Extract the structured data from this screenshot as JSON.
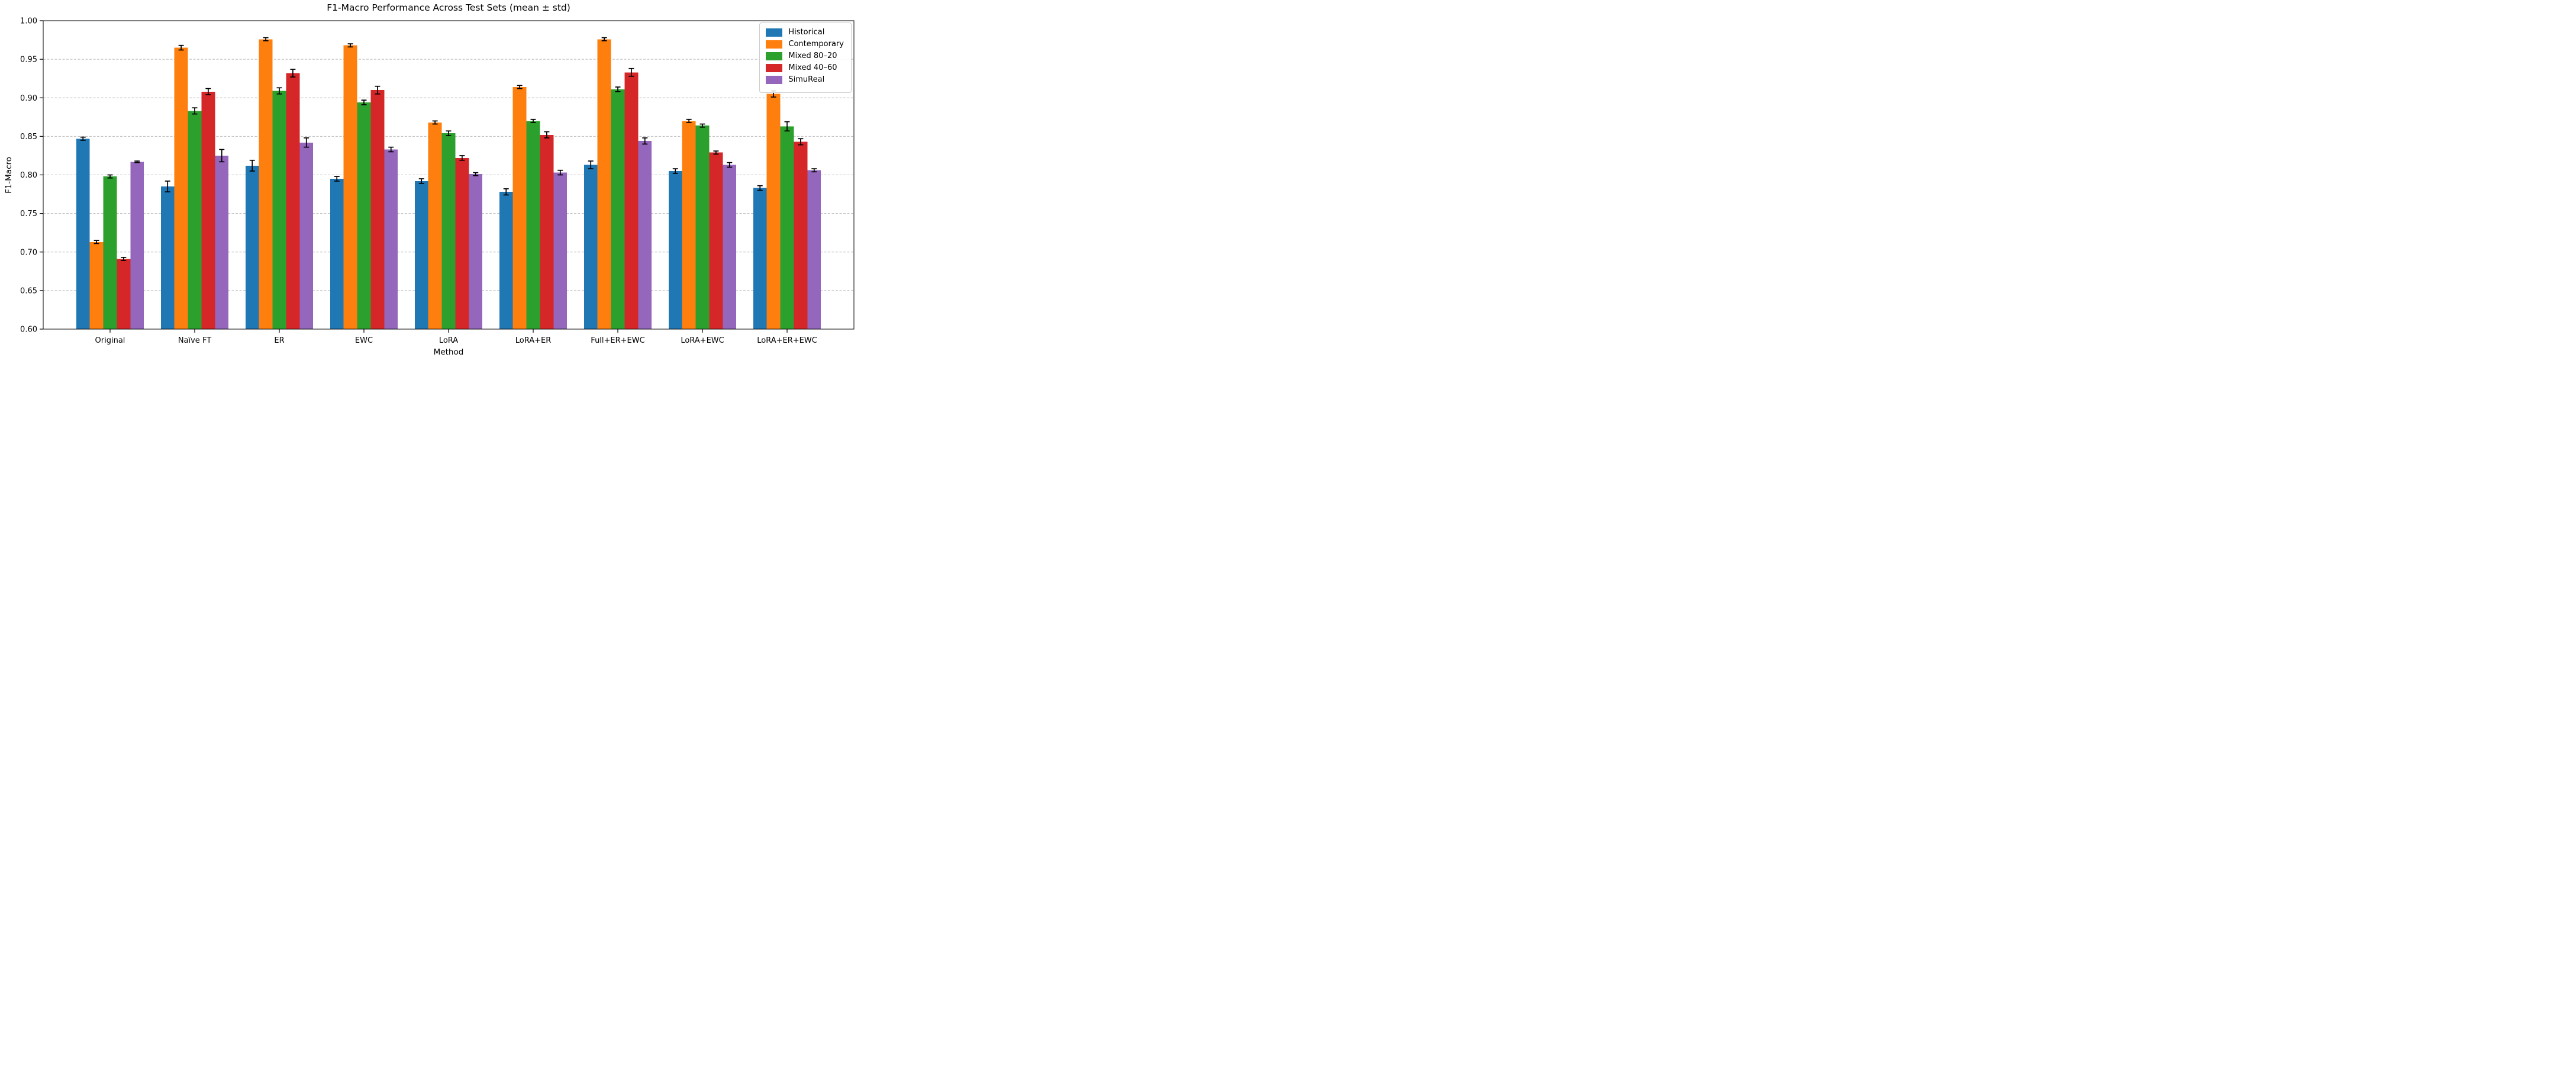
{
  "title": "F1-Macro Performance Across Test Sets (mean ± std)",
  "chart_data": {
    "type": "bar",
    "title": "F1-Macro Performance Across Test Sets (mean ± std)",
    "xlabel": "Method",
    "ylabel": "F1-Macro",
    "background": "#ffffff",
    "grid": "horizontal dashed",
    "grid_color": "#b8b8b8",
    "legend_position": "upper right",
    "error_bar_color": "#000000",
    "ylim": [
      0.6,
      1.0
    ],
    "ytick_labels": [
      "0.60",
      "0.65",
      "0.70",
      "0.75",
      "0.80",
      "0.85",
      "0.90",
      "0.95",
      "1.00"
    ],
    "categories": [
      "Original",
      "Naïve FT",
      "ER",
      "EWC",
      "LoRA",
      "LoRA+ER",
      "Full+ER+EWC",
      "LoRA+EWC",
      "LoRA+ER+EWC"
    ],
    "series": [
      {
        "name": "Historical",
        "color": "#1f77b4",
        "values": [
          0.847,
          0.785,
          0.812,
          0.795,
          0.792,
          0.778,
          0.813,
          0.805,
          0.783
        ],
        "std": [
          0.002,
          0.007,
          0.007,
          0.003,
          0.003,
          0.004,
          0.005,
          0.003,
          0.003
        ]
      },
      {
        "name": "Contemporary",
        "color": "#ff7f0e",
        "values": [
          0.713,
          0.965,
          0.976,
          0.968,
          0.868,
          0.914,
          0.976,
          0.87,
          0.905
        ],
        "std": [
          0.002,
          0.003,
          0.002,
          0.002,
          0.002,
          0.002,
          0.002,
          0.002,
          0.004
        ]
      },
      {
        "name": "Mixed 80–20",
        "color": "#2ca02c",
        "values": [
          0.798,
          0.883,
          0.909,
          0.894,
          0.854,
          0.87,
          0.911,
          0.864,
          0.863
        ],
        "std": [
          0.002,
          0.004,
          0.004,
          0.003,
          0.003,
          0.002,
          0.003,
          0.002,
          0.006
        ]
      },
      {
        "name": "Mixed 40–60",
        "color": "#d62728",
        "values": [
          0.691,
          0.908,
          0.932,
          0.91,
          0.822,
          0.852,
          0.933,
          0.829,
          0.843
        ],
        "std": [
          0.002,
          0.004,
          0.005,
          0.005,
          0.003,
          0.004,
          0.005,
          0.002,
          0.004
        ]
      },
      {
        "name": "SimuReal",
        "color": "#9467bd",
        "values": [
          0.817,
          0.825,
          0.842,
          0.833,
          0.801,
          0.803,
          0.844,
          0.813,
          0.806
        ],
        "std": [
          0.001,
          0.008,
          0.006,
          0.003,
          0.002,
          0.003,
          0.004,
          0.003,
          0.002
        ]
      }
    ]
  }
}
